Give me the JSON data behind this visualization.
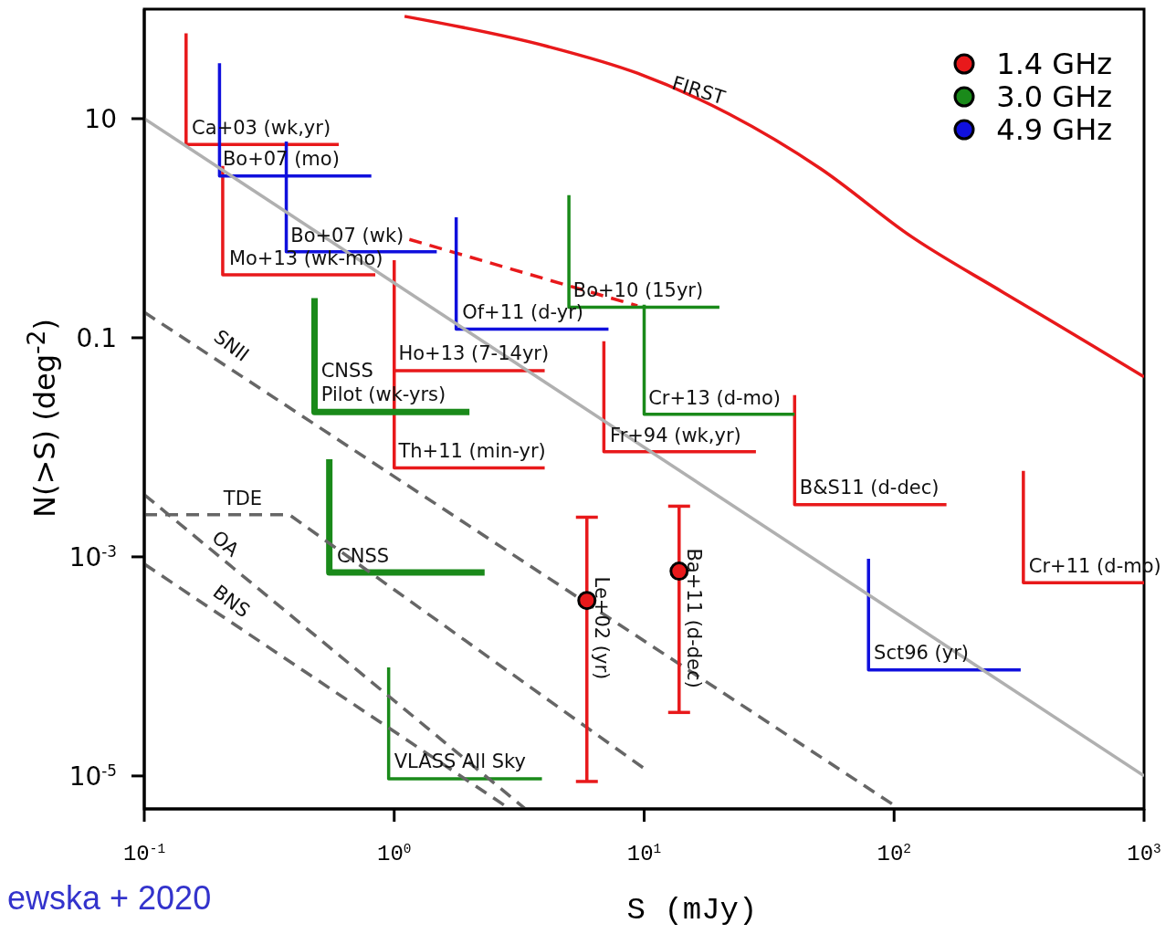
{
  "chart_data": {
    "type": "line",
    "xlabel": "S (mJy)",
    "ylabel": "N(>S) (deg$^{-2}$)",
    "log": "xy",
    "legend": "top right",
    "xlim": [
      0.1,
      1000
    ],
    "ylim": [
      5e-06,
      100
    ],
    "xticks": [
      {
        "value": 0.1,
        "label": "10$^{-1}$"
      },
      {
        "value": 1,
        "label": "10$^{0}$"
      },
      {
        "value": 10,
        "label": "10$^{1}$"
      },
      {
        "value": 100,
        "label": "10$^{2}$"
      },
      {
        "value": 1000,
        "label": "10$^{3}$"
      }
    ],
    "yticks": [
      {
        "value": 1e-05,
        "label": "10$^{-5}$"
      },
      {
        "value": 0.001,
        "label": "10$^{-3}$"
      },
      0.1,
      10
    ],
    "series": [
      {
        "name": "1.4 GHz",
        "color": "#e8191b",
        "x": [
          0.147,
          0.147,
          0.6
        ],
        "values": [
          60,
          5.8,
          5.8
        ]
      },
      {
        "color": "#e8191b",
        "x": [
          0.206,
          0.206,
          0.84
        ],
        "values": [
          3.7,
          0.376,
          0.376
        ]
      },
      {
        "color": "#e8191b",
        "x": [
          1,
          1,
          4
        ],
        "values": [
          0.51,
          0.05,
          0.05
        ]
      },
      {
        "color": "#e8191b",
        "x": [
          1,
          1,
          4
        ],
        "values": [
          0.05,
          0.0065,
          0.0065
        ]
      },
      {
        "color": "#e8191b",
        "x": [
          6.9,
          6.9,
          28
        ],
        "values": [
          0.093,
          0.0091,
          0.0091
        ]
      },
      {
        "color": "#e8191b",
        "x": [
          40,
          40,
          162
        ],
        "values": [
          0.03,
          0.003,
          0.003
        ]
      },
      {
        "color": "#e8191b",
        "x": [
          329,
          329,
          1000
        ],
        "values": [
          0.0061,
          0.00058,
          0.00058
        ]
      },
      {
        "color": "#e8191b",
        "x": [
          1.1,
          4.06,
          9.4,
          21.9,
          50.8,
          118,
          273,
          632,
          1000
        ],
        "values": [
          86,
          46,
          26,
          11,
          3.5,
          0.83,
          0.26,
          0.083,
          0.044
        ]
      },
      {
        "color": "#e8191b",
        "line_style": "dashed",
        "x": [
          1.15,
          9.4
        ],
        "values": [
          0.79,
          0.196
        ]
      },
      {
        "type": "scatter",
        "marker": "circle",
        "color": "#e8191b",
        "x": [
          5.9,
          13.8
        ],
        "values": [
          0.0004,
          0.00074
        ],
        "errors": [
          [
            8.9e-06,
            0.0023
          ],
          [
            3.8e-05,
            0.0029
          ]
        ]
      },
      {
        "name": "3.0 GHz",
        "color": "#1a8a1a",
        "x": [
          5,
          5,
          20
        ],
        "values": [
          2.0,
          0.19,
          0.19
        ]
      },
      {
        "color": "#1a8a1a",
        "x": [
          10,
          10,
          40
        ],
        "values": [
          0.2,
          0.02,
          0.02
        ]
      },
      {
        "color": "#1a8a1a",
        "x": [
          0.48,
          0.48,
          2.0
        ],
        "values": [
          0.23,
          0.021,
          0.021
        ]
      },
      {
        "color": "#1a8a1a",
        "x": [
          0.55,
          0.55,
          2.3
        ],
        "values": [
          0.0078,
          0.00072,
          0.00072
        ]
      },
      {
        "color": "#1a8a1a",
        "x": [
          0.95,
          0.95,
          3.9
        ],
        "values": [
          9.8e-05,
          9.4e-06,
          9.4e-06
        ]
      },
      {
        "name": "4.9 GHz",
        "color": "#1010dd",
        "x": [
          0.2,
          0.2,
          0.81
        ],
        "values": [
          32,
          3.0,
          3.0
        ]
      },
      {
        "color": "#1010dd",
        "x": [
          0.37,
          0.37,
          1.48
        ],
        "values": [
          6.2,
          0.61,
          0.61
        ]
      },
      {
        "color": "#1010dd",
        "x": [
          1.77,
          1.77,
          7.2
        ],
        "values": [
          1.26,
          0.12,
          0.12
        ]
      },
      {
        "color": "#1010dd",
        "x": [
          79,
          79,
          321
        ],
        "values": [
          0.00096,
          9.3e-05,
          9.3e-05
        ]
      },
      {
        "color": "#b0b0b0",
        "x": [
          0.1,
          1000
        ],
        "values": [
          10,
          1e-05
        ]
      },
      {
        "color": "#666666",
        "line_style": "dashed",
        "x": [
          0.1,
          100
        ],
        "values": [
          0.171,
          5.4e-06
        ]
      },
      {
        "color": "#666666",
        "line_style": "dashed",
        "x": [
          0.1,
          0.381,
          10
        ],
        "values": [
          0.00242,
          0.00242,
          1.17e-05
        ]
      },
      {
        "color": "#666666",
        "line_style": "dashed",
        "x": [
          0.1,
          3.35
        ],
        "values": [
          0.0037,
          5e-06
        ]
      },
      {
        "color": "#666666",
        "line_style": "dashed",
        "x": [
          0.1,
          2.9
        ],
        "values": [
          0.00086,
          5e-06
        ]
      }
    ],
    "annotations": [
      {
        "text": "FIRST",
        "x": 21.9,
        "y": 11
      },
      {
        "text": "SNII",
        "x": 0.222,
        "y": 0.0515
      },
      {
        "text": "TDE",
        "x": 0.248,
        "y": 0.00242
      },
      {
        "text": "OA",
        "x": 0.21,
        "y": 0.00092
      },
      {
        "text": "BNS",
        "x": 0.222,
        "y": 0.000253
      },
      {
        "text": "Ca+03 (wk,yr)",
        "x": 0.155,
        "y": 8.1
      },
      {
        "text": "Bo+07 (mo)",
        "x": 0.206,
        "y": 4.2
      },
      {
        "text": "Bo+07 (wk)",
        "x": 0.385,
        "y": 0.84
      },
      {
        "text": "Mo+13 (wk-mo)",
        "x": 0.206,
        "y": 0.52
      },
      {
        "text": "Bo+10 (15yr)",
        "x": 5.2,
        "y": 0.266
      },
      {
        "text": "Of+11 (d-yr)",
        "x": 1.87,
        "y": 0.168
      },
      {
        "text": "Ho+13 (7-14yr)",
        "x": 1.04,
        "y": 0.071
      },
      {
        "text": "CNSS\nPilot (wk-yrs)",
        "x": 0.51,
        "y": 0.049
      },
      {
        "text": "Cr+13 (d-mo)",
        "x": 10.4,
        "y": 0.0277
      },
      {
        "text": "Fr+94 (wk,yr)",
        "x": 7.3,
        "y": 0.0126
      },
      {
        "text": "Th+11 (min-yr)",
        "x": 1.04,
        "y": 0.0091
      },
      {
        "text": "B&S11 (d-dec)",
        "x": 41.9,
        "y": 0.0042
      },
      {
        "text": "CNSS",
        "x": 0.59,
        "y": 0.001
      },
      {
        "text": "Cr+11 (d-mo)",
        "x": 346,
        "y": 0.00081
      },
      {
        "text": "Sct96 (yr)",
        "x": 83,
        "y": 0.00013
      },
      {
        "text": "VLASS All Sky",
        "x": 1.0,
        "y": 1.33e-05
      },
      {
        "text": "Le+02 (yr)",
        "x": 5.9,
        "y": 0.00066
      },
      {
        "text": "Ba+11 (d-dec)",
        "x": 13.8,
        "y": 0.0012
      },
      "ewska + 2020"
    ]
  }
}
